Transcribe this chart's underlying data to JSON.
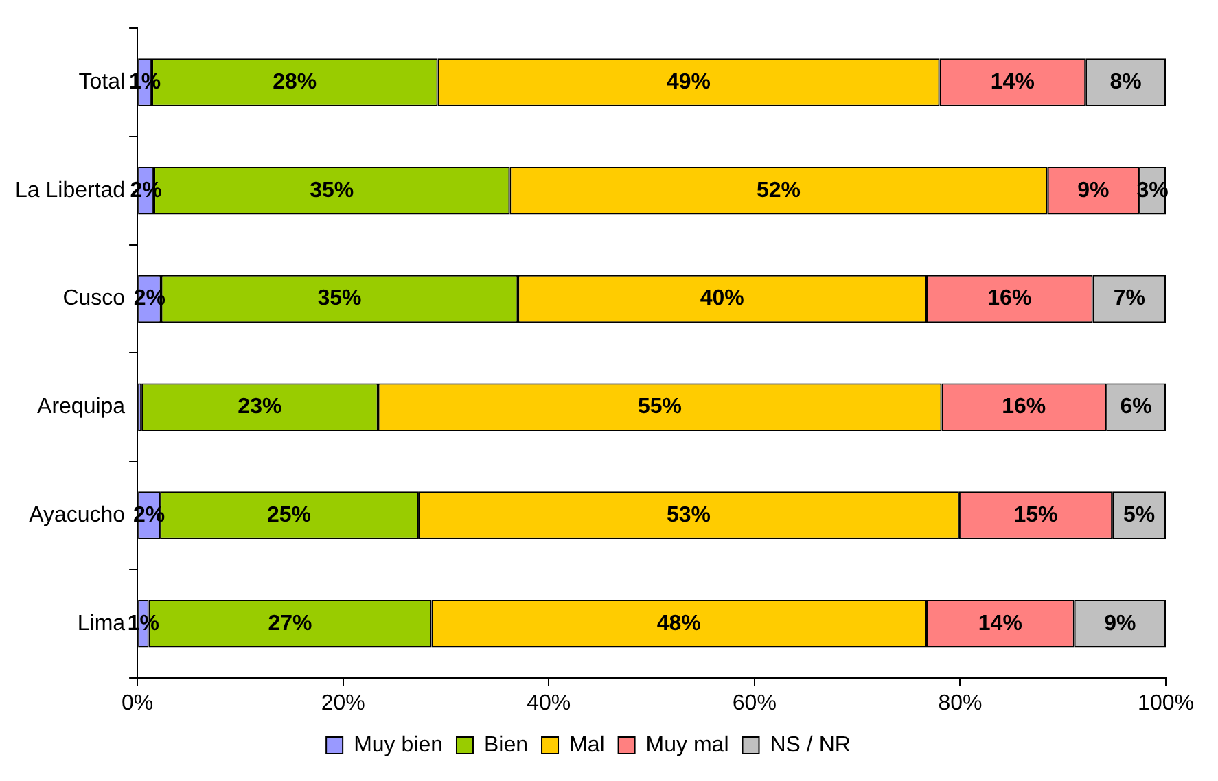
{
  "chart_data": {
    "type": "bar",
    "orientation": "horizontal",
    "stacked": true,
    "categories": [
      "Total",
      "La Libertad",
      "Cusco",
      "Arequipa",
      "Ayacucho",
      "Lima"
    ],
    "series": [
      {
        "name": "Muy bien",
        "color": "#9999ff",
        "values": [
          1.4,
          1.6,
          2.3,
          0.4,
          2.2,
          1.1
        ],
        "value_labels": [
          "1%",
          "2%",
          "2%",
          null,
          "2%",
          "1%"
        ]
      },
      {
        "name": "Bien",
        "color": "#99cc00",
        "values": [
          27.8,
          34.6,
          34.7,
          23.0,
          25.1,
          27.5
        ],
        "value_labels": [
          "28%",
          "35%",
          "35%",
          "23%",
          "25%",
          "27%"
        ]
      },
      {
        "name": "Mal",
        "color": "#ffcc00",
        "values": [
          48.8,
          52.3,
          39.7,
          54.8,
          52.6,
          48.1
        ],
        "value_labels": [
          "49%",
          "52%",
          "40%",
          "55%",
          "53%",
          "48%"
        ]
      },
      {
        "name": "Muy mal",
        "color": "#ff8080",
        "values": [
          14.2,
          8.9,
          16.2,
          16.0,
          14.9,
          14.4
        ],
        "value_labels": [
          "14%",
          "9%",
          "16%",
          "16%",
          "15%",
          "14%"
        ]
      },
      {
        "name": "NS / NR",
        "color": "#c0c0c0",
        "values": [
          7.8,
          2.6,
          7.1,
          5.8,
          5.2,
          8.9
        ],
        "value_labels": [
          "8%",
          "3%",
          "7%",
          "6%",
          "5%",
          "9%"
        ]
      }
    ],
    "xlim": [
      0,
      100
    ],
    "xticks": [
      {
        "value": 0,
        "label": "0%"
      },
      {
        "value": 20,
        "label": "20%"
      },
      {
        "value": 40,
        "label": "40%"
      },
      {
        "value": 60,
        "label": "60%"
      },
      {
        "value": 80,
        "label": "80%"
      },
      {
        "value": 100,
        "label": "100%"
      }
    ],
    "grid": false,
    "legend": "bottom"
  }
}
